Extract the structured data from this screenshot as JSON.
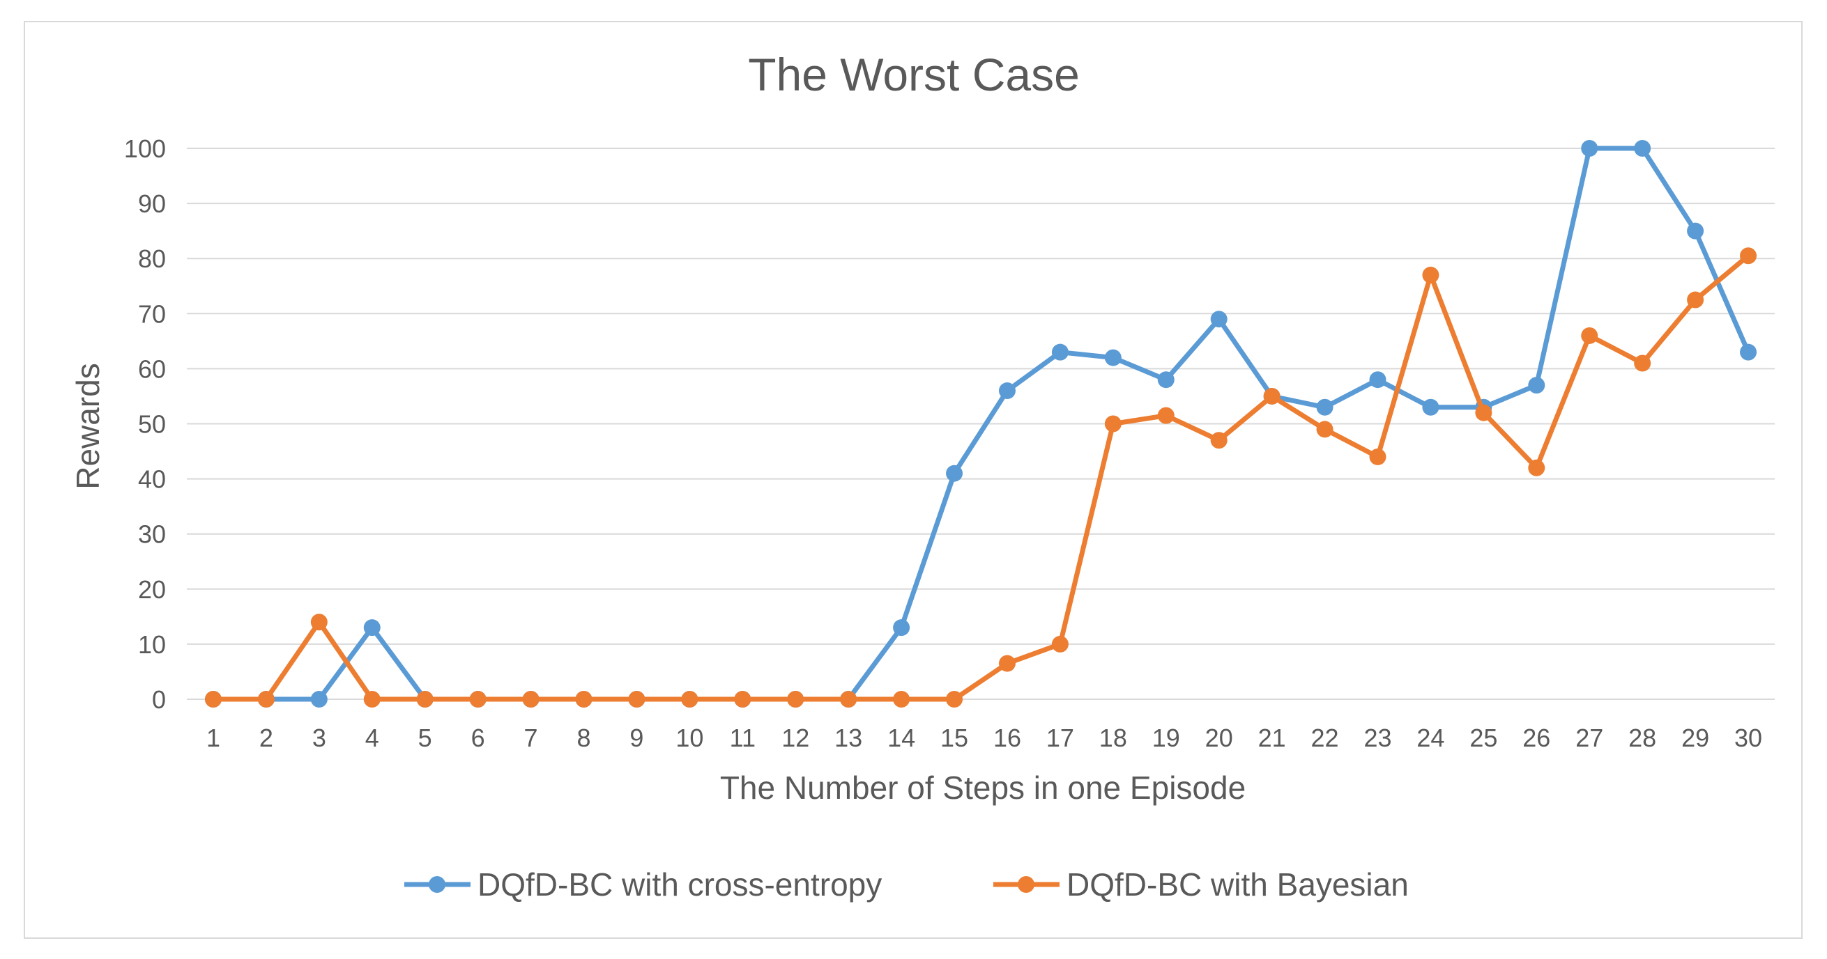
{
  "chart_data": {
    "type": "line",
    "title": "The Worst Case",
    "xlabel": "The Number of Steps in one Episode",
    "ylabel": "Rewards",
    "ylim": [
      0,
      100
    ],
    "yticks": [
      0,
      10,
      20,
      30,
      40,
      50,
      60,
      70,
      80,
      90,
      100
    ],
    "grid": true,
    "legend_position": "bottom",
    "categories": [
      "1",
      "2",
      "3",
      "4",
      "5",
      "6",
      "7",
      "8",
      "9",
      "10",
      "11",
      "12",
      "13",
      "14",
      "15",
      "16",
      "17",
      "18",
      "19",
      "20",
      "21",
      "22",
      "23",
      "24",
      "25",
      "26",
      "27",
      "28",
      "29",
      "30"
    ],
    "series": [
      {
        "name": "DQfD-BC with cross-entropy",
        "color": "#5b9bd5",
        "values": [
          0,
          0,
          0,
          13,
          0,
          0,
          0,
          0,
          0,
          0,
          0,
          0,
          0,
          13,
          41,
          56,
          63,
          62,
          58,
          69,
          55,
          53,
          58,
          53,
          53,
          57,
          100,
          100,
          85,
          63
        ]
      },
      {
        "name": "DQfD-BC with Bayesian",
        "color": "#ed7d31",
        "values": [
          0,
          0,
          14,
          0,
          0,
          0,
          0,
          0,
          0,
          0,
          0,
          0,
          0,
          0,
          0,
          6.5,
          10,
          50,
          51.5,
          47,
          55,
          49,
          44,
          77,
          52,
          42,
          66,
          61,
          72.5,
          80.5
        ]
      }
    ]
  }
}
